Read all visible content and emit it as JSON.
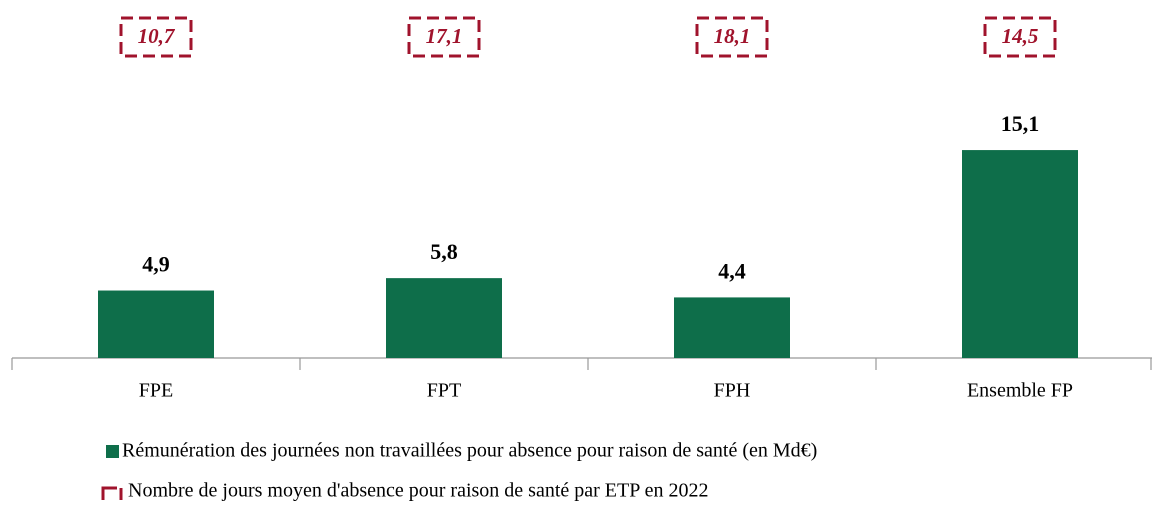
{
  "chart_data": {
    "type": "bar",
    "categories": [
      "FPE",
      "FPT",
      "FPH",
      "Ensemble FP"
    ],
    "series": [
      {
        "name": "Rémunération des journées non travaillées pour absence pour raison de santé (en Md€)",
        "color": "#0e6e4a",
        "values": [
          4.9,
          5.8,
          4.4,
          15.1
        ],
        "value_labels": [
          "4,9",
          "5,8",
          "4,4",
          "15,1"
        ]
      },
      {
        "name": "Nombre de jours moyen d'absence pour raison de santé par ETP en 2022",
        "color": "#a0132c",
        "values": [
          10.7,
          17.1,
          18.1,
          14.5
        ],
        "value_labels": [
          "10,7",
          "17,1",
          "18,1",
          "14,5"
        ]
      }
    ],
    "ylim": [
      0,
      20
    ]
  }
}
